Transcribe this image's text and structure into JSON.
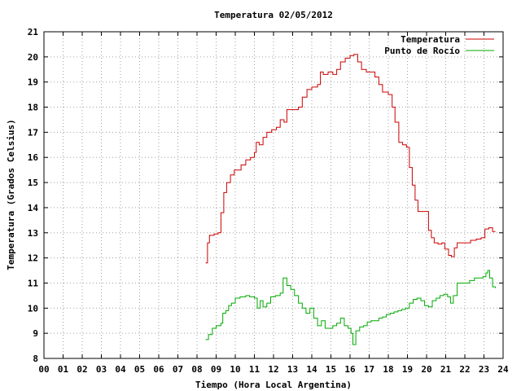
{
  "chart_data": {
    "type": "line",
    "title": "Temperatura 02/05/2012",
    "xlabel": "Tiempo (Hora Local Argentina)",
    "ylabel": "Temperatura (Grados Celsius)",
    "xlim": [
      0,
      24
    ],
    "ylim": [
      8,
      21
    ],
    "x_ticks": [
      "00",
      "01",
      "02",
      "03",
      "04",
      "05",
      "06",
      "07",
      "08",
      "09",
      "10",
      "11",
      "12",
      "13",
      "14",
      "15",
      "16",
      "17",
      "18",
      "19",
      "20",
      "21",
      "22",
      "23",
      "24"
    ],
    "y_ticks": [
      "8",
      "9",
      "10",
      "11",
      "12",
      "13",
      "14",
      "15",
      "16",
      "17",
      "18",
      "19",
      "20",
      "21"
    ],
    "grid": true,
    "legend_position": "top-right",
    "series": [
      {
        "name": "Temperatura",
        "color": "#cc0000",
        "points": [
          [
            8.45,
            11.8
          ],
          [
            8.55,
            12.6
          ],
          [
            8.65,
            12.9
          ],
          [
            8.9,
            12.95
          ],
          [
            9.1,
            13.0
          ],
          [
            9.25,
            13.8
          ],
          [
            9.4,
            14.6
          ],
          [
            9.55,
            15.0
          ],
          [
            9.75,
            15.3
          ],
          [
            9.95,
            15.5
          ],
          [
            10.15,
            15.5
          ],
          [
            10.3,
            15.7
          ],
          [
            10.55,
            15.9
          ],
          [
            10.8,
            16.0
          ],
          [
            11.0,
            16.2
          ],
          [
            11.1,
            16.6
          ],
          [
            11.25,
            16.5
          ],
          [
            11.45,
            16.8
          ],
          [
            11.65,
            17.0
          ],
          [
            11.9,
            17.1
          ],
          [
            12.15,
            17.2
          ],
          [
            12.35,
            17.5
          ],
          [
            12.55,
            17.4
          ],
          [
            12.7,
            17.9
          ],
          [
            13.0,
            17.9
          ],
          [
            13.3,
            18.0
          ],
          [
            13.5,
            18.4
          ],
          [
            13.75,
            18.7
          ],
          [
            14.0,
            18.8
          ],
          [
            14.3,
            18.9
          ],
          [
            14.45,
            19.4
          ],
          [
            14.6,
            19.3
          ],
          [
            14.85,
            19.4
          ],
          [
            15.1,
            19.3
          ],
          [
            15.3,
            19.5
          ],
          [
            15.5,
            19.8
          ],
          [
            15.75,
            19.95
          ],
          [
            16.0,
            20.05
          ],
          [
            16.2,
            20.1
          ],
          [
            16.4,
            19.8
          ],
          [
            16.6,
            19.5
          ],
          [
            16.85,
            19.4
          ],
          [
            17.1,
            19.4
          ],
          [
            17.3,
            19.2
          ],
          [
            17.5,
            18.9
          ],
          [
            17.7,
            18.6
          ],
          [
            18.0,
            18.5
          ],
          [
            18.2,
            18.0
          ],
          [
            18.35,
            17.4
          ],
          [
            18.55,
            16.6
          ],
          [
            18.75,
            16.5
          ],
          [
            18.95,
            16.4
          ],
          [
            19.1,
            15.6
          ],
          [
            19.25,
            14.9
          ],
          [
            19.4,
            14.3
          ],
          [
            19.55,
            13.85
          ],
          [
            19.75,
            13.85
          ],
          [
            19.95,
            13.85
          ],
          [
            20.1,
            13.1
          ],
          [
            20.25,
            12.8
          ],
          [
            20.4,
            12.6
          ],
          [
            20.6,
            12.55
          ],
          [
            20.8,
            12.6
          ],
          [
            20.95,
            12.35
          ],
          [
            21.15,
            12.1
          ],
          [
            21.3,
            12.05
          ],
          [
            21.45,
            12.4
          ],
          [
            21.6,
            12.6
          ],
          [
            21.85,
            12.6
          ],
          [
            22.05,
            12.6
          ],
          [
            22.3,
            12.7
          ],
          [
            22.6,
            12.75
          ],
          [
            22.85,
            12.8
          ],
          [
            22.95,
            12.8
          ],
          [
            23.05,
            13.15
          ],
          [
            23.25,
            13.2
          ],
          [
            23.45,
            13.05
          ],
          [
            23.6,
            13.05
          ]
        ]
      },
      {
        "name": "Punto de Rocío",
        "color": "#00aa00",
        "points": [
          [
            8.45,
            8.75
          ],
          [
            8.6,
            8.95
          ],
          [
            8.8,
            9.2
          ],
          [
            9.0,
            9.3
          ],
          [
            9.25,
            9.4
          ],
          [
            9.35,
            9.8
          ],
          [
            9.5,
            9.9
          ],
          [
            9.65,
            10.1
          ],
          [
            9.8,
            10.2
          ],
          [
            10.0,
            10.4
          ],
          [
            10.25,
            10.45
          ],
          [
            10.55,
            10.5
          ],
          [
            10.75,
            10.45
          ],
          [
            11.0,
            10.4
          ],
          [
            11.15,
            10.0
          ],
          [
            11.3,
            10.3
          ],
          [
            11.45,
            10.05
          ],
          [
            11.65,
            10.2
          ],
          [
            11.85,
            10.45
          ],
          [
            12.1,
            10.5
          ],
          [
            12.35,
            10.6
          ],
          [
            12.5,
            11.2
          ],
          [
            12.7,
            10.9
          ],
          [
            12.9,
            10.75
          ],
          [
            13.1,
            10.5
          ],
          [
            13.3,
            10.2
          ],
          [
            13.5,
            10.0
          ],
          [
            13.7,
            9.8
          ],
          [
            13.9,
            10.0
          ],
          [
            14.1,
            9.6
          ],
          [
            14.3,
            9.3
          ],
          [
            14.5,
            9.5
          ],
          [
            14.7,
            9.2
          ],
          [
            14.9,
            9.2
          ],
          [
            15.1,
            9.3
          ],
          [
            15.3,
            9.4
          ],
          [
            15.5,
            9.6
          ],
          [
            15.7,
            9.3
          ],
          [
            15.9,
            9.2
          ],
          [
            16.05,
            9.0
          ],
          [
            16.15,
            8.55
          ],
          [
            16.3,
            9.1
          ],
          [
            16.5,
            9.25
          ],
          [
            16.7,
            9.3
          ],
          [
            16.9,
            9.45
          ],
          [
            17.1,
            9.5
          ],
          [
            17.3,
            9.5
          ],
          [
            17.5,
            9.6
          ],
          [
            17.7,
            9.65
          ],
          [
            17.9,
            9.75
          ],
          [
            18.1,
            9.8
          ],
          [
            18.3,
            9.85
          ],
          [
            18.5,
            9.9
          ],
          [
            18.7,
            9.95
          ],
          [
            18.9,
            10.0
          ],
          [
            19.1,
            10.2
          ],
          [
            19.3,
            10.35
          ],
          [
            19.5,
            10.4
          ],
          [
            19.7,
            10.3
          ],
          [
            19.9,
            10.1
          ],
          [
            20.1,
            10.05
          ],
          [
            20.3,
            10.3
          ],
          [
            20.5,
            10.4
          ],
          [
            20.7,
            10.5
          ],
          [
            20.9,
            10.55
          ],
          [
            21.1,
            10.45
          ],
          [
            21.25,
            10.2
          ],
          [
            21.4,
            10.5
          ],
          [
            21.6,
            11.0
          ],
          [
            21.8,
            11.0
          ],
          [
            22.0,
            11.0
          ],
          [
            22.25,
            11.1
          ],
          [
            22.5,
            11.2
          ],
          [
            22.75,
            11.2
          ],
          [
            22.95,
            11.25
          ],
          [
            23.1,
            11.4
          ],
          [
            23.2,
            11.5
          ],
          [
            23.3,
            11.2
          ],
          [
            23.45,
            10.85
          ],
          [
            23.6,
            10.8
          ]
        ]
      }
    ]
  }
}
